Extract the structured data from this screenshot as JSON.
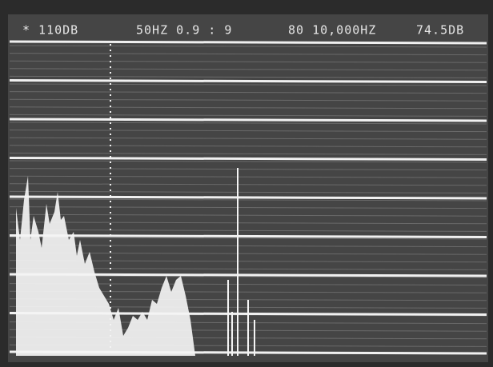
{
  "header": {
    "items": [
      "* 110DB",
      "50HZ 0.9 : 9",
      "80 10,000HZ",
      "74.5DB"
    ]
  }
}
